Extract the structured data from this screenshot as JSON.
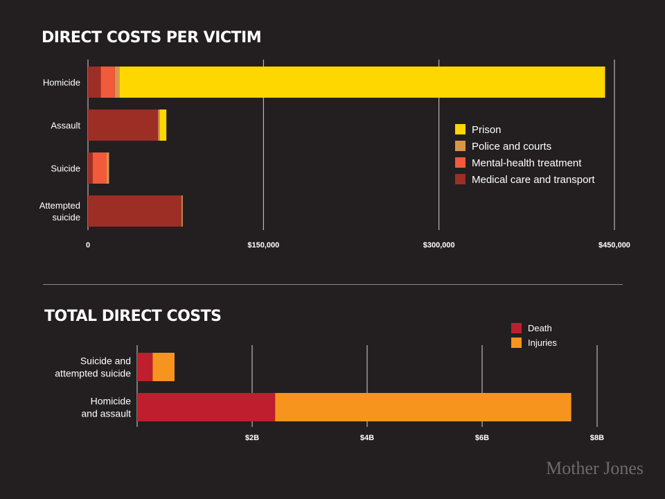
{
  "chart_data": [
    {
      "type": "bar",
      "orientation": "horizontal",
      "stacked": true,
      "title": "DIRECT COSTS PER VICTIM",
      "categories": [
        [
          "Homicide"
        ],
        [
          "Assault"
        ],
        [
          "Suicide"
        ],
        [
          "Attempted",
          "suicide"
        ]
      ],
      "series": [
        {
          "name": "Medical care and transport",
          "color": "#9c2e26",
          "values": [
            11000,
            60000,
            4000,
            80000
          ]
        },
        {
          "name": "Mental-health treatment",
          "color": "#f15a3a",
          "values": [
            12000,
            0,
            12000,
            0
          ]
        },
        {
          "name": "Police and courts",
          "color": "#d9964a",
          "values": [
            4000,
            1500,
            2000,
            1000
          ]
        },
        {
          "name": "Prison",
          "color": "#ffd700",
          "values": [
            415000,
            5500,
            0,
            0
          ]
        }
      ],
      "legend_order": [
        "Prison",
        "Police and courts",
        "Mental-health treatment",
        "Medical care and transport"
      ],
      "legend_placement": "right",
      "xlim": [
        0,
        450000
      ],
      "xticks": [
        0,
        150000,
        300000,
        450000
      ],
      "xtick_labels": [
        "0",
        "$150,000",
        "$300,000",
        "$450,000"
      ],
      "grid": true
    },
    {
      "type": "bar",
      "orientation": "horizontal",
      "stacked": true,
      "title": "TOTAL DIRECT COSTS",
      "categories": [
        [
          "Suicide and",
          "attempted suicide"
        ],
        [
          "Homicide",
          "and assault"
        ]
      ],
      "series": [
        {
          "name": "Death",
          "color": "#be1e2d",
          "values": [
            0.27,
            2.4
          ]
        },
        {
          "name": "Injuries",
          "color": "#f7941d",
          "values": [
            0.38,
            5.15
          ]
        }
      ],
      "legend_order": [
        "Death",
        "Injuries"
      ],
      "legend_placement": "top-right",
      "xlim": [
        0,
        8
      ],
      "xticks": [
        2,
        4,
        6,
        8
      ],
      "xtick_labels": [
        "$2B",
        "$4B",
        "$6B",
        "$8B"
      ],
      "grid": true
    }
  ],
  "branding": {
    "logo": "Mother Jones"
  }
}
